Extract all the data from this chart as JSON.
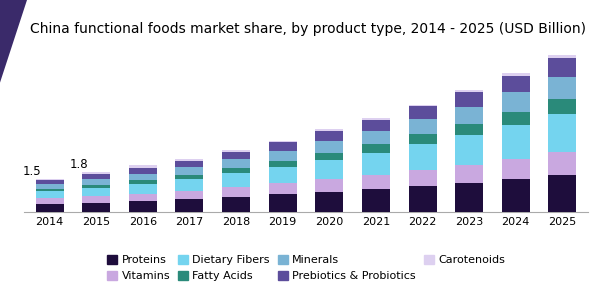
{
  "title": "China functional foods market share, by product type, 2014 - 2025 (USD Billion)",
  "years": [
    2014,
    2015,
    2016,
    2017,
    2018,
    2019,
    2020,
    2021,
    2022,
    2023,
    2024,
    2025
  ],
  "series": {
    "Proteins": [
      0.38,
      0.44,
      0.52,
      0.6,
      0.7,
      0.8,
      0.92,
      1.04,
      1.18,
      1.33,
      1.5,
      1.68
    ],
    "Vitamins": [
      0.24,
      0.28,
      0.32,
      0.37,
      0.43,
      0.49,
      0.56,
      0.63,
      0.71,
      0.8,
      0.9,
      1.01
    ],
    "Dietary Fibers": [
      0.32,
      0.38,
      0.44,
      0.52,
      0.62,
      0.73,
      0.86,
      1.0,
      1.16,
      1.33,
      1.52,
      1.72
    ],
    "Fatty Acids": [
      0.12,
      0.14,
      0.17,
      0.2,
      0.24,
      0.28,
      0.32,
      0.37,
      0.43,
      0.49,
      0.56,
      0.64
    ],
    "Minerals": [
      0.2,
      0.24,
      0.28,
      0.32,
      0.38,
      0.44,
      0.51,
      0.58,
      0.67,
      0.76,
      0.87,
      0.99
    ],
    "Prebiotics & Probiotics": [
      0.18,
      0.22,
      0.25,
      0.29,
      0.34,
      0.39,
      0.45,
      0.51,
      0.58,
      0.66,
      0.75,
      0.85
    ],
    "Carotenoids": [
      0.06,
      0.1,
      0.12,
      0.1,
      0.09,
      0.07,
      0.08,
      0.07,
      0.07,
      0.08,
      0.1,
      0.11
    ]
  },
  "colors": {
    "Proteins": "#1e0d3c",
    "Vitamins": "#c9a8e0",
    "Dietary Fibers": "#74d4ef",
    "Fatty Acids": "#2a8a7a",
    "Minerals": "#7ab3d4",
    "Prebiotics & Probiotics": "#5c4d9b",
    "Carotenoids": "#ddd0f0"
  },
  "annotations": {
    "2014": "1.5",
    "2015": "1.8"
  },
  "background_color": "#ffffff",
  "title_fontsize": 10,
  "legend_fontsize": 8,
  "ylim": [
    0,
    7.5
  ],
  "bar_width": 0.6
}
